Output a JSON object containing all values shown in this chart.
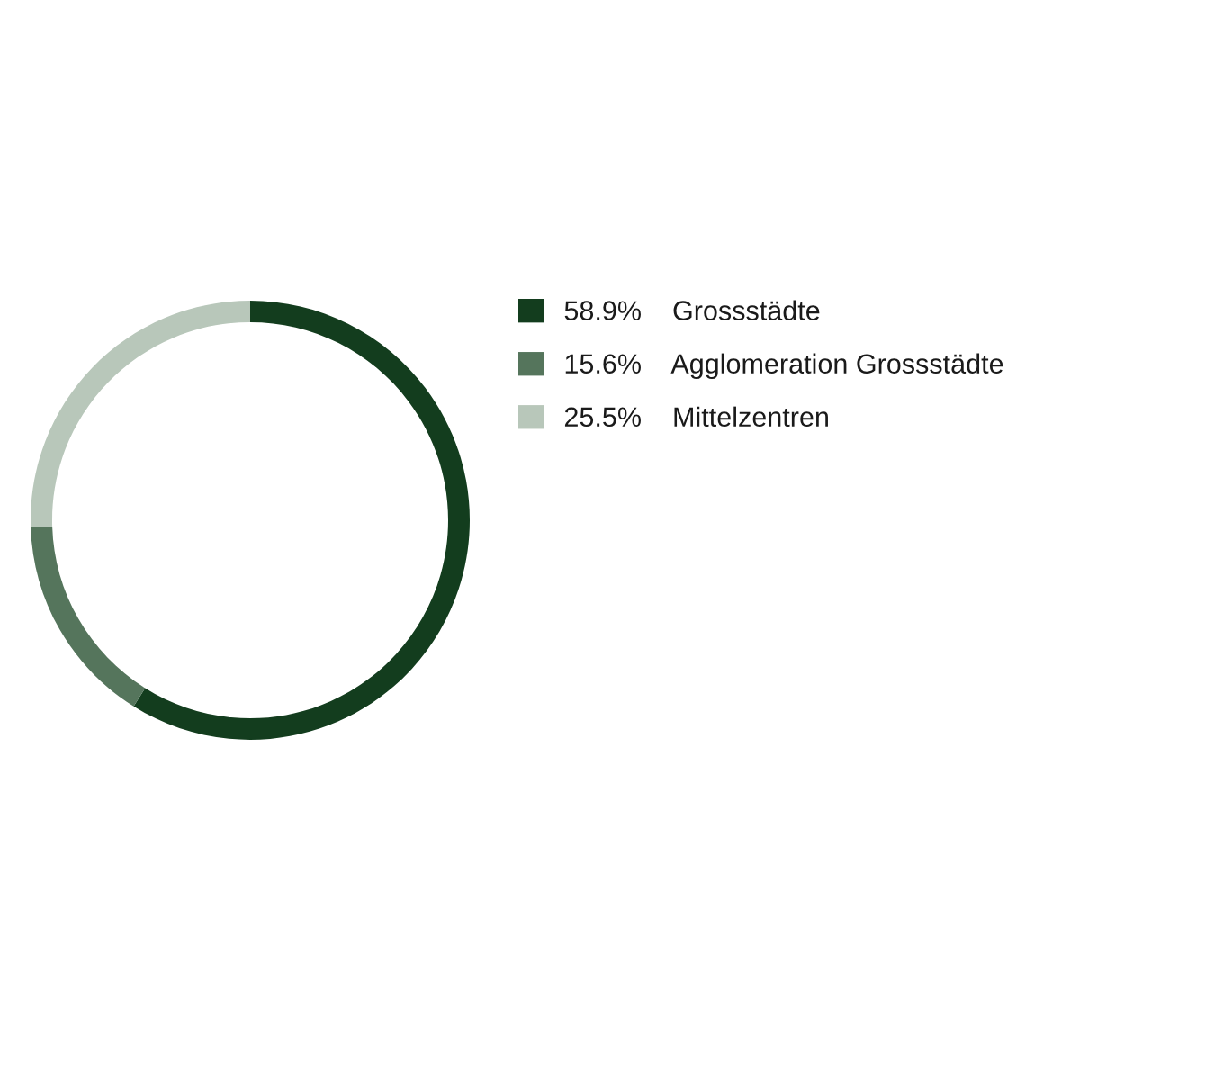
{
  "chart_data": {
    "type": "donut",
    "categories": [
      "Grossstädte",
      "Agglomeration Grossstädte",
      "Mittelzentren"
    ],
    "values": [
      58.9,
      15.6,
      25.5
    ],
    "colors": [
      "#133d1e",
      "#55755c",
      "#b8c7ba"
    ],
    "value_labels": [
      "58.9%",
      "15.6%",
      "25.5%"
    ],
    "legend": "right"
  }
}
